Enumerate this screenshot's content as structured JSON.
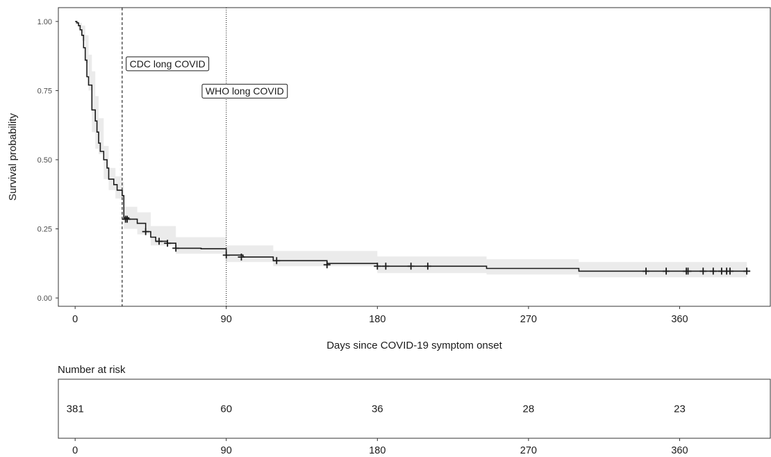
{
  "chart_data": [
    {
      "type": "line",
      "subtype": "kaplan-meier survival curve with 95% confidence band and censor marks",
      "xlabel": "Days since COVID-19 symptom onset",
      "ylabel": "Survival probability",
      "xlim": [
        -10,
        414
      ],
      "ylim": [
        -0.03,
        1.05
      ],
      "x_ticks": [
        0,
        90,
        180,
        270,
        360
      ],
      "y_ticks": [
        0.0,
        0.25,
        0.5,
        0.75,
        1.0
      ],
      "y_tick_labels": [
        "0.00",
        "0.25",
        "0.50",
        "0.75",
        "1.00"
      ],
      "grid": false,
      "legend": "none",
      "colors": {
        "curve": "#1a1a1a",
        "band": "#ebebeb",
        "reference_lines": "#1a1a1a"
      },
      "reference_lines": [
        {
          "x": 28,
          "style": "dashed",
          "label": "CDC long COVID",
          "label_x": 55,
          "label_y": 0.847
        },
        {
          "x": 90,
          "style": "dotted",
          "label": "WHO long COVID",
          "label_x": 101,
          "label_y": 0.748
        }
      ],
      "series": [
        {
          "survival_steps": [
            [
              0,
              1.0
            ],
            [
              1,
              0.995
            ],
            [
              2,
              0.985
            ],
            [
              3,
              0.97
            ],
            [
              4,
              0.95
            ],
            [
              5,
              0.905
            ],
            [
              6,
              0.86
            ],
            [
              7,
              0.8
            ],
            [
              8,
              0.77
            ],
            [
              10,
              0.68
            ],
            [
              12,
              0.64
            ],
            [
              13,
              0.6
            ],
            [
              14,
              0.56
            ],
            [
              15,
              0.53
            ],
            [
              17,
              0.5
            ],
            [
              19,
              0.47
            ],
            [
              20,
              0.43
            ],
            [
              23,
              0.41
            ],
            [
              25,
              0.39
            ],
            [
              28,
              0.37
            ],
            [
              29,
              0.29
            ],
            [
              32,
              0.285
            ],
            [
              37,
              0.27
            ],
            [
              42,
              0.24
            ],
            [
              45,
              0.22
            ],
            [
              48,
              0.205
            ],
            [
              55,
              0.198
            ],
            [
              60,
              0.18
            ],
            [
              75,
              0.178
            ],
            [
              90,
              0.155
            ],
            [
              100,
              0.148
            ],
            [
              118,
              0.135
            ],
            [
              150,
              0.125
            ],
            [
              180,
              0.115
            ],
            [
              245,
              0.107
            ],
            [
              300,
              0.097
            ],
            [
              400,
              0.097
            ]
          ],
          "upper_steps": [
            [
              0,
              1.0
            ],
            [
              2,
              0.995
            ],
            [
              4,
              0.985
            ],
            [
              6,
              0.95
            ],
            [
              8,
              0.88
            ],
            [
              10,
              0.82
            ],
            [
              12,
              0.73
            ],
            [
              14,
              0.65
            ],
            [
              17,
              0.55
            ],
            [
              20,
              0.47
            ],
            [
              24,
              0.44
            ],
            [
              28,
              0.42
            ],
            [
              29,
              0.33
            ],
            [
              37,
              0.31
            ],
            [
              45,
              0.26
            ],
            [
              60,
              0.22
            ],
            [
              90,
              0.19
            ],
            [
              118,
              0.17
            ],
            [
              180,
              0.15
            ],
            [
              245,
              0.14
            ],
            [
              300,
              0.13
            ],
            [
              400,
              0.13
            ]
          ],
          "lower_steps": [
            [
              0,
              0.99
            ],
            [
              2,
              0.97
            ],
            [
              4,
              0.93
            ],
            [
              6,
              0.85
            ],
            [
              8,
              0.75
            ],
            [
              10,
              0.6
            ],
            [
              12,
              0.54
            ],
            [
              14,
              0.52
            ],
            [
              17,
              0.43
            ],
            [
              20,
              0.39
            ],
            [
              24,
              0.36
            ],
            [
              28,
              0.34
            ],
            [
              29,
              0.25
            ],
            [
              37,
              0.23
            ],
            [
              45,
              0.19
            ],
            [
              60,
              0.16
            ],
            [
              90,
              0.13
            ],
            [
              118,
              0.115
            ],
            [
              180,
              0.09
            ],
            [
              245,
              0.085
            ],
            [
              300,
              0.075
            ],
            [
              400,
              0.075
            ]
          ],
          "censor_points": [
            [
              30,
              0.285
            ],
            [
              31,
              0.285
            ],
            [
              42,
              0.24
            ],
            [
              50,
              0.205
            ],
            [
              55,
              0.198
            ],
            [
              60,
              0.18
            ],
            [
              90,
              0.155
            ],
            [
              99,
              0.148
            ],
            [
              120,
              0.135
            ],
            [
              150,
              0.12
            ],
            [
              180,
              0.115
            ],
            [
              185,
              0.115
            ],
            [
              200,
              0.115
            ],
            [
              210,
              0.115
            ],
            [
              340,
              0.097
            ],
            [
              352,
              0.097
            ],
            [
              364,
              0.097
            ],
            [
              365,
              0.097
            ],
            [
              374,
              0.097
            ],
            [
              380,
              0.097
            ],
            [
              385,
              0.097
            ],
            [
              388,
              0.097
            ],
            [
              390,
              0.097
            ],
            [
              400,
              0.097
            ]
          ]
        }
      ]
    },
    {
      "type": "table",
      "title": "Number at risk",
      "x_ticks": [
        0,
        90,
        180,
        270,
        360
      ],
      "x": [
        0,
        90,
        180,
        270,
        360
      ],
      "values": [
        381,
        60,
        36,
        28,
        23
      ]
    }
  ]
}
